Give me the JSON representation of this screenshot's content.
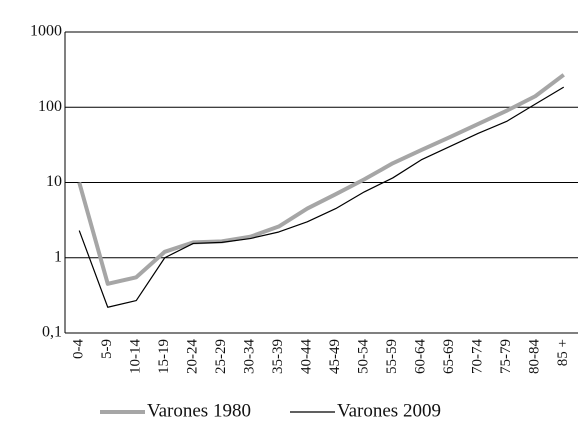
{
  "chart_data": {
    "type": "line",
    "categories": [
      "0-4",
      "5-9",
      "10-14",
      "15-19",
      "20-24",
      "25-29",
      "30-34",
      "35-39",
      "40-44",
      "45-49",
      "50-54",
      "55-59",
      "60-64",
      "65-69",
      "70-74",
      "75-79",
      "80-84",
      "85 +"
    ],
    "series": [
      {
        "name": "Varones 1980",
        "color": "#a6a6a6",
        "values": [
          10,
          0.45,
          0.55,
          1.2,
          1.6,
          1.65,
          1.9,
          2.6,
          4.5,
          7,
          11,
          18,
          27,
          40,
          60,
          90,
          140,
          270
        ]
      },
      {
        "name": "Varones 2009",
        "color": "#000000",
        "values": [
          2.3,
          0.22,
          0.27,
          1.0,
          1.55,
          1.6,
          1.8,
          2.2,
          3.0,
          4.5,
          7.5,
          11.5,
          20,
          30,
          45,
          65,
          110,
          185
        ]
      }
    ],
    "ylim": [
      0.1,
      1000
    ],
    "yticks": [
      {
        "value": 0.1,
        "label": "0,1"
      },
      1,
      10,
      100,
      1000
    ],
    "log_scale": true,
    "grid": true,
    "legend": "bottom"
  }
}
